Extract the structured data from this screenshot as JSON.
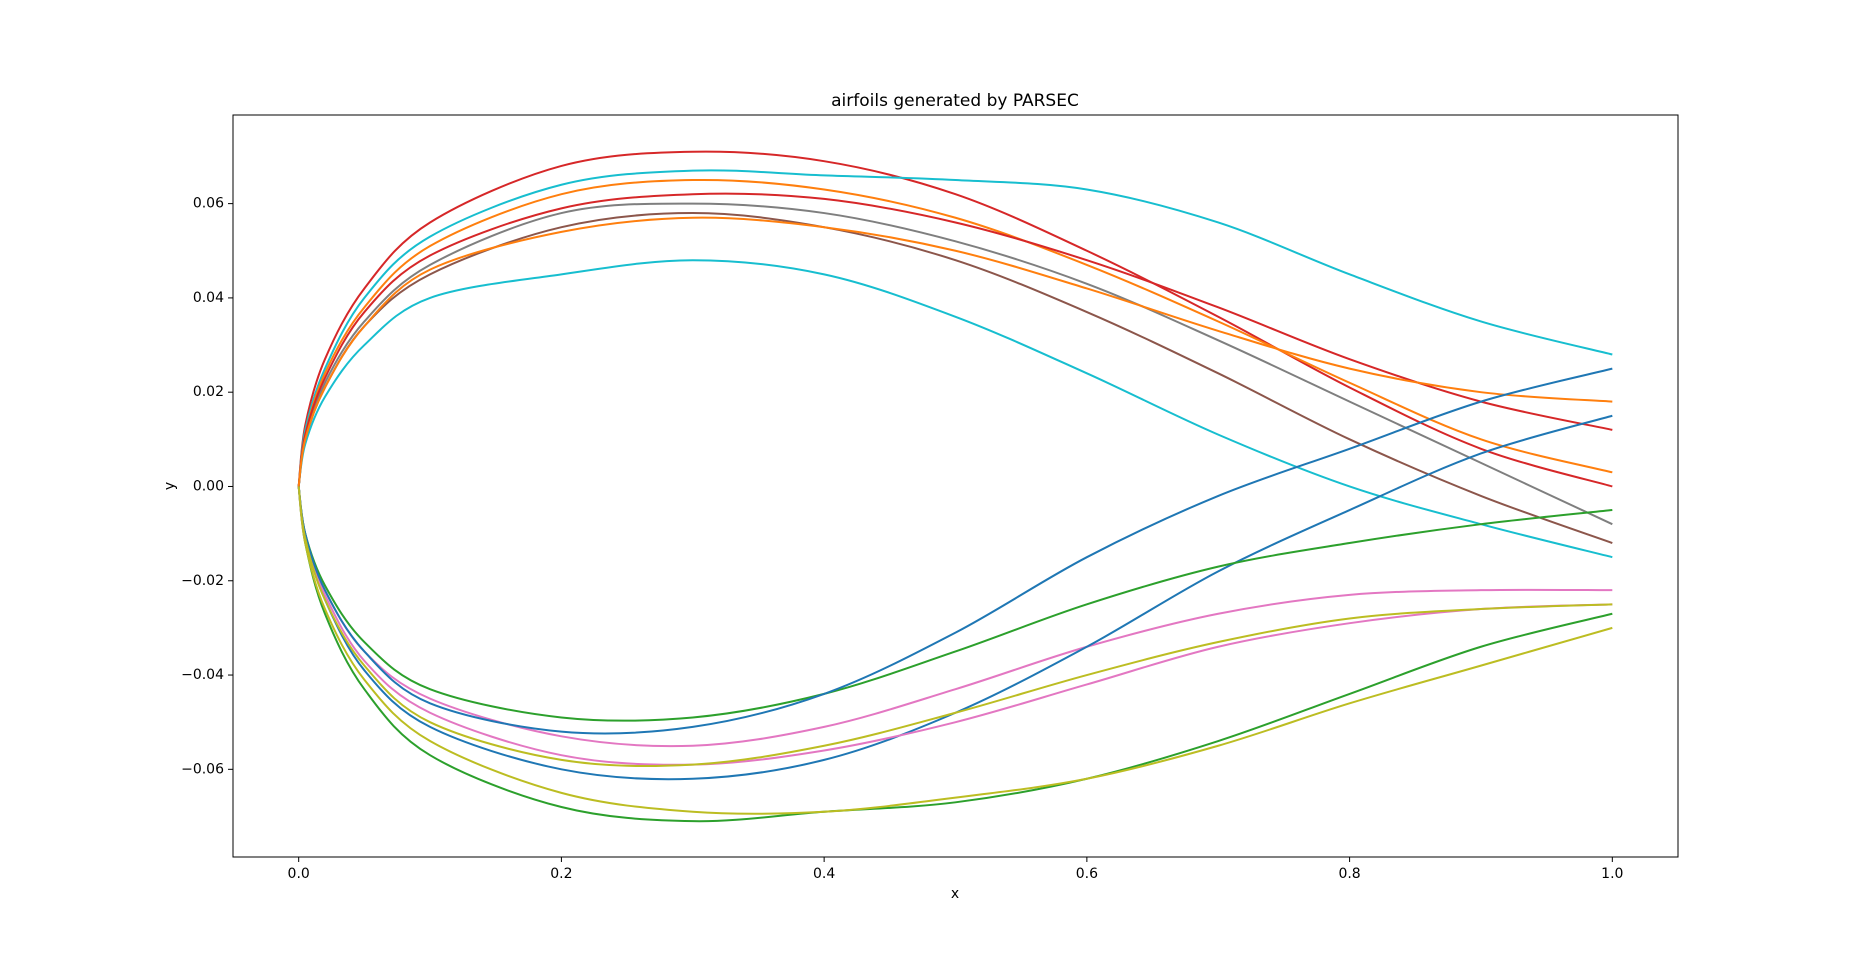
{
  "chart_data": {
    "type": "line",
    "title": "airfoils generated by PARSEC",
    "x_label": "x",
    "y_label": "y",
    "x": [
      0,
      0.005,
      0.02,
      0.05,
      0.1,
      0.2,
      0.3,
      0.4,
      0.5,
      0.6,
      0.7,
      0.8,
      0.9,
      1.0
    ],
    "series": [
      {
        "color": "#d62728",
        "values": [
          0,
          0.013,
          0.027,
          0.042,
          0.056,
          0.068,
          0.071,
          0.069,
          0.062,
          0.05,
          0.036,
          0.021,
          0.008,
          0.0
        ]
      },
      {
        "color": "#17becf",
        "values": [
          0,
          0.012,
          0.025,
          0.04,
          0.053,
          0.064,
          0.067,
          0.066,
          0.065,
          0.063,
          0.056,
          0.045,
          0.035,
          0.028
        ]
      },
      {
        "color": "#ff7f0e",
        "values": [
          0,
          0.011,
          0.024,
          0.038,
          0.051,
          0.062,
          0.065,
          0.063,
          0.057,
          0.047,
          0.035,
          0.022,
          0.01,
          0.003
        ]
      },
      {
        "color": "#7f7f7f",
        "values": [
          0,
          0.01,
          0.022,
          0.035,
          0.047,
          0.058,
          0.06,
          0.058,
          0.052,
          0.043,
          0.031,
          0.018,
          0.005,
          -0.008
        ]
      },
      {
        "color": "#8c564b",
        "values": [
          0,
          0.01,
          0.021,
          0.034,
          0.045,
          0.055,
          0.058,
          0.055,
          0.048,
          0.037,
          0.024,
          0.01,
          -0.002,
          -0.012
        ]
      },
      {
        "color": "#17becf",
        "values": [
          0,
          0.009,
          0.019,
          0.03,
          0.04,
          0.045,
          0.048,
          0.045,
          0.036,
          0.024,
          0.011,
          0.0,
          -0.008,
          -0.015
        ]
      },
      {
        "color": "#d62728",
        "values": [
          0,
          0.011,
          0.023,
          0.037,
          0.049,
          0.059,
          0.062,
          0.061,
          0.056,
          0.048,
          0.038,
          0.027,
          0.018,
          0.012
        ]
      },
      {
        "color": "#ff7f0e",
        "values": [
          0,
          0.01,
          0.021,
          0.034,
          0.046,
          0.054,
          0.057,
          0.055,
          0.05,
          0.042,
          0.033,
          0.025,
          0.02,
          0.018
        ]
      },
      {
        "color": "#2ca02c",
        "values": [
          0,
          -0.012,
          -0.027,
          -0.043,
          -0.057,
          -0.068,
          -0.071,
          -0.069,
          -0.067,
          -0.062,
          -0.054,
          -0.044,
          -0.034,
          -0.027
        ]
      },
      {
        "color": "#e377c2",
        "values": [
          0,
          -0.01,
          -0.022,
          -0.035,
          -0.045,
          -0.053,
          -0.055,
          -0.051,
          -0.043,
          -0.034,
          -0.027,
          -0.023,
          -0.022,
          -0.022
        ]
      },
      {
        "color": "#1f77b4",
        "values": [
          0,
          -0.011,
          -0.024,
          -0.039,
          -0.051,
          -0.06,
          -0.062,
          -0.058,
          -0.048,
          -0.034,
          -0.018,
          -0.005,
          0.007,
          0.015
        ]
      },
      {
        "color": "#bcbd22",
        "values": [
          0,
          -0.012,
          -0.026,
          -0.041,
          -0.054,
          -0.065,
          -0.069,
          -0.069,
          -0.066,
          -0.062,
          -0.055,
          -0.046,
          -0.038,
          -0.03
        ]
      },
      {
        "color": "#2ca02c",
        "values": [
          0,
          -0.01,
          -0.021,
          -0.033,
          -0.043,
          -0.049,
          -0.049,
          -0.044,
          -0.035,
          -0.025,
          -0.017,
          -0.012,
          -0.008,
          -0.005
        ]
      },
      {
        "color": "#e377c2",
        "values": [
          0,
          -0.011,
          -0.023,
          -0.037,
          -0.048,
          -0.057,
          -0.059,
          -0.056,
          -0.05,
          -0.042,
          -0.034,
          -0.029,
          -0.026,
          -0.025
        ]
      },
      {
        "color": "#1f77b4",
        "values": [
          0,
          -0.01,
          -0.022,
          -0.035,
          -0.046,
          -0.052,
          -0.051,
          -0.044,
          -0.031,
          -0.015,
          -0.002,
          0.008,
          0.018,
          0.025
        ]
      },
      {
        "color": "#bcbd22",
        "values": [
          0,
          -0.011,
          -0.024,
          -0.038,
          -0.05,
          -0.058,
          -0.059,
          -0.055,
          -0.048,
          -0.04,
          -0.033,
          -0.028,
          -0.026,
          -0.025
        ]
      }
    ],
    "xlim": [
      -0.05,
      1.05
    ],
    "xticks": [
      {
        "value": 0,
        "label": "0.0"
      },
      {
        "value": 0.2,
        "label": "0.2"
      },
      {
        "value": 0.4,
        "label": "0.4"
      },
      {
        "value": 0.6,
        "label": "0.6"
      },
      {
        "value": 0.8,
        "label": "0.8"
      },
      {
        "value": 1.0,
        "label": "1.0"
      }
    ],
    "ylim": [
      -0.0786,
      0.0788
    ],
    "yticks": [
      {
        "value": -0.06,
        "label": "−0.06"
      },
      {
        "value": -0.04,
        "label": "−0.04"
      },
      {
        "value": -0.02,
        "label": "−0.02"
      },
      {
        "value": 0,
        "label": "0.00"
      },
      {
        "value": 0.02,
        "label": "0.02"
      },
      {
        "value": 0.04,
        "label": "0.04"
      },
      {
        "value": 0.06,
        "label": "0.06"
      }
    ],
    "grid": false
  }
}
